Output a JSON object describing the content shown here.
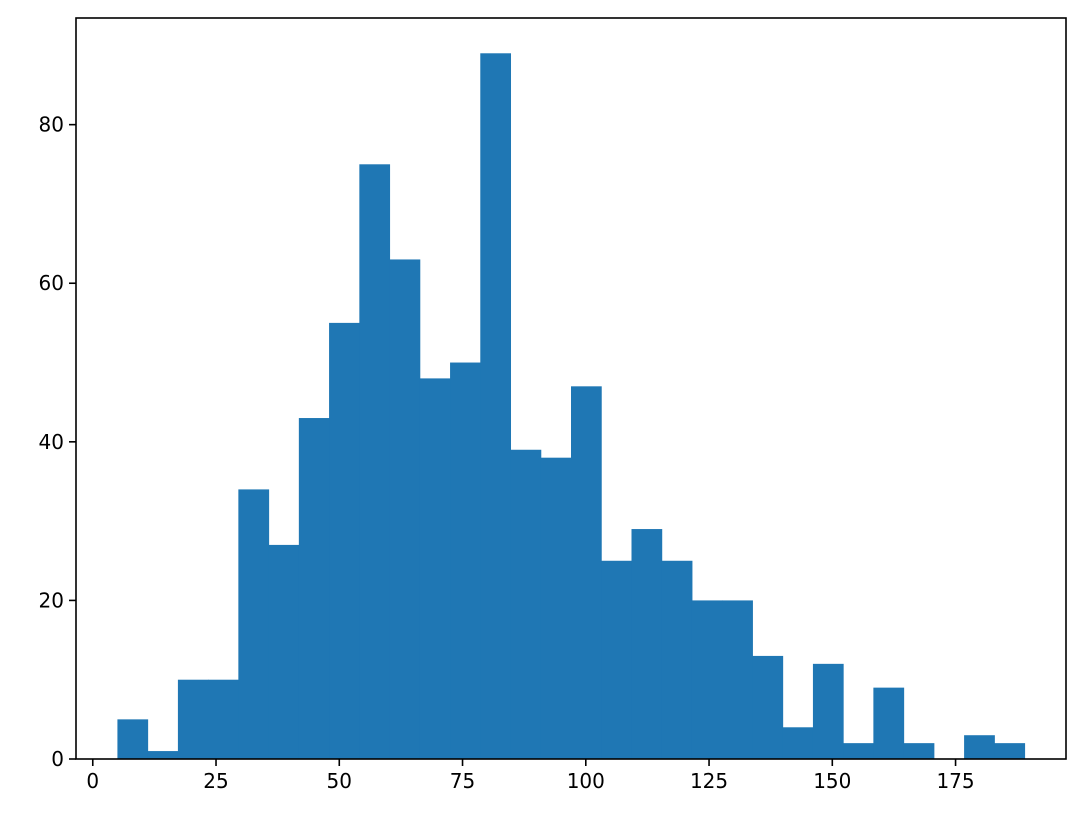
{
  "chart_data": {
    "type": "bar",
    "subtype": "histogram",
    "title": "",
    "xlabel": "",
    "ylabel": "",
    "bin_edges": [
      5,
      11.13,
      17.27,
      23.4,
      29.53,
      35.67,
      41.8,
      47.93,
      54.07,
      60.2,
      66.33,
      72.47,
      78.6,
      84.73,
      90.87,
      97.0,
      103.13,
      109.27,
      115.4,
      121.53,
      127.67,
      133.8,
      139.93,
      146.07,
      152.2,
      158.33,
      164.47,
      170.6,
      176.73,
      182.87,
      189.0
    ],
    "counts": [
      5,
      1,
      10,
      10,
      34,
      27,
      43,
      55,
      75,
      63,
      48,
      50,
      89,
      39,
      38,
      47,
      25,
      29,
      25,
      20,
      20,
      13,
      4,
      12,
      2,
      9,
      2,
      0,
      3,
      2
    ],
    "xlim": [
      -3.4,
      197.4
    ],
    "ylim": [
      0,
      93.45
    ],
    "xticks": [
      0,
      25,
      50,
      75,
      100,
      125,
      150,
      175
    ],
    "yticks": [
      0,
      20,
      40,
      60,
      80
    ],
    "bar_color": "#1f77b4",
    "grid": false
  }
}
